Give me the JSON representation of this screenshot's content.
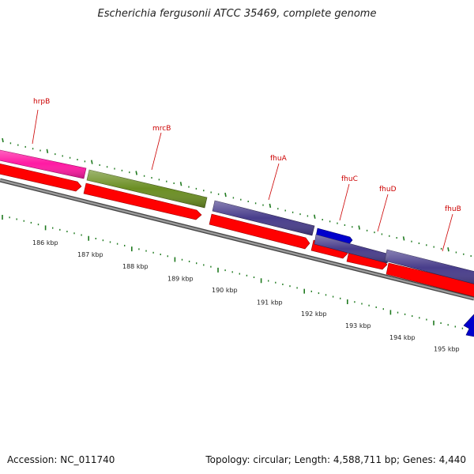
{
  "title": "Escherichia fergusonii ATCC 35469, complete genome",
  "accession_text": "Accession: NC_011740",
  "summary_text": "Topology: circular; Length: 4,588,711 bp; Genes: 4,440",
  "colors": {
    "backbone": "#888888",
    "gene_label": "#cc0000",
    "orf_arrow": "#ff0000",
    "tick": "#1f7a1f",
    "hrpB": "#ff1aa3",
    "mrcB": "#6b8e23",
    "fhuA": "#483d8b",
    "fhuC": "#0000cc",
    "fhuD": "#483d8b",
    "fhuB": "#483d8b",
    "next_gene": "#0000cc"
  },
  "genes": [
    {
      "name": "hrpB"
    },
    {
      "name": "mrcB"
    },
    {
      "name": "fhuA"
    },
    {
      "name": "fhuC"
    },
    {
      "name": "fhuD"
    },
    {
      "name": "fhuB"
    }
  ],
  "kbp_labels": [
    "186 kbp",
    "187 kbp",
    "188 kbp",
    "189 kbp",
    "190 kbp",
    "191 kbp",
    "192 kbp",
    "193 kbp",
    "194 kbp",
    "195 kbp"
  ]
}
